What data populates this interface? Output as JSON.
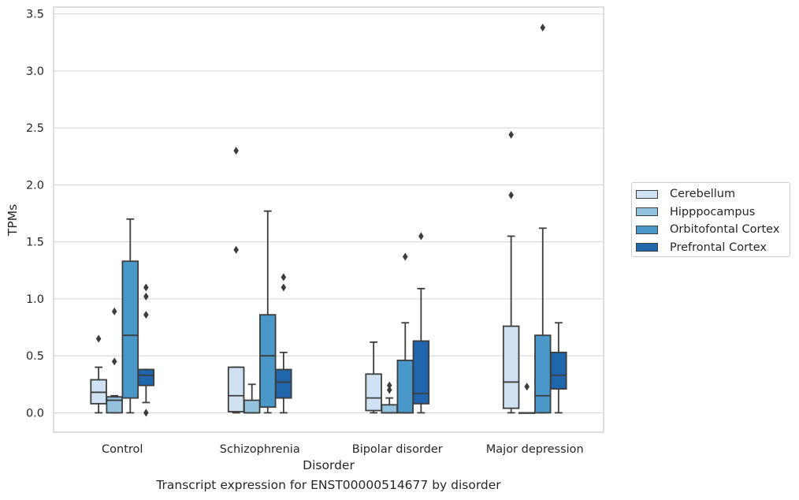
{
  "chart_data": {
    "type": "box",
    "xlabel": "Disorder",
    "ylabel": "TPMs",
    "caption": "Transcript expression for ENST00000514677 by disorder",
    "ylim": [
      -0.17,
      3.56
    ],
    "yticks": [
      "0.0",
      "0.5",
      "1.0",
      "1.5",
      "2.0",
      "2.5",
      "3.0",
      "3.5"
    ],
    "grid": true,
    "legend_position": "right",
    "categories": [
      "Control",
      "Schizophrenia",
      "Bipolar disorder",
      "Major depression"
    ],
    "series": [
      {
        "name": "Cerebellum",
        "color": "#cfe1f2",
        "boxes": [
          {
            "q1": 0.08,
            "median": 0.18,
            "q3": 0.29,
            "whisker_low": 0.0,
            "whisker_high": 0.4,
            "outliers": [
              0.65
            ]
          },
          {
            "q1": 0.01,
            "median": 0.15,
            "q3": 0.4,
            "whisker_low": 0.0,
            "whisker_high": 0.4,
            "outliers": [
              1.43,
              2.3
            ]
          },
          {
            "q1": 0.02,
            "median": 0.13,
            "q3": 0.34,
            "whisker_low": 0.0,
            "whisker_high": 0.62,
            "outliers": []
          },
          {
            "q1": 0.04,
            "median": 0.27,
            "q3": 0.76,
            "whisker_low": 0.0,
            "whisker_high": 1.55,
            "outliers": [
              1.91,
              2.44
            ]
          }
        ]
      },
      {
        "name": "Hipppocampus",
        "color": "#93c3df",
        "boxes": [
          {
            "q1": 0.0,
            "median": 0.11,
            "q3": 0.14,
            "whisker_low": 0.0,
            "whisker_high": 0.15,
            "outliers": [
              0.45,
              0.89
            ]
          },
          {
            "q1": 0.0,
            "median": 0.0,
            "q3": 0.11,
            "whisker_low": 0.0,
            "whisker_high": 0.25,
            "outliers": []
          },
          {
            "q1": 0.0,
            "median": 0.0,
            "q3": 0.07,
            "whisker_low": 0.0,
            "whisker_high": 0.13,
            "outliers": [
              0.2,
              0.24
            ]
          },
          {
            "q1": 0.0,
            "median": 0.0,
            "q3": 0.0,
            "whisker_low": 0.0,
            "whisker_high": 0.0,
            "outliers": [
              0.23
            ]
          }
        ]
      },
      {
        "name": "Orbitofontal Cortex",
        "color": "#4a98c9",
        "boxes": [
          {
            "q1": 0.13,
            "median": 0.68,
            "q3": 1.33,
            "whisker_low": 0.0,
            "whisker_high": 1.7,
            "outliers": []
          },
          {
            "q1": 0.05,
            "median": 0.5,
            "q3": 0.86,
            "whisker_low": 0.0,
            "whisker_high": 1.77,
            "outliers": []
          },
          {
            "q1": 0.0,
            "median": 0.0,
            "q3": 0.46,
            "whisker_low": 0.0,
            "whisker_high": 0.79,
            "outliers": [
              1.37
            ]
          },
          {
            "q1": 0.0,
            "median": 0.15,
            "q3": 0.68,
            "whisker_low": 0.0,
            "whisker_high": 1.62,
            "outliers": [
              3.38
            ]
          }
        ]
      },
      {
        "name": "Prefrontal Cortex",
        "color": "#2066ac",
        "boxes": [
          {
            "q1": 0.24,
            "median": 0.33,
            "q3": 0.38,
            "whisker_low": 0.09,
            "whisker_high": 0.38,
            "outliers": [
              0.0,
              0.86,
              1.02,
              1.1
            ]
          },
          {
            "q1": 0.13,
            "median": 0.27,
            "q3": 0.38,
            "whisker_low": 0.0,
            "whisker_high": 0.53,
            "outliers": [
              1.1,
              1.19
            ]
          },
          {
            "q1": 0.08,
            "median": 0.17,
            "q3": 0.63,
            "whisker_low": 0.0,
            "whisker_high": 1.09,
            "outliers": [
              1.55
            ]
          },
          {
            "q1": 0.21,
            "median": 0.33,
            "q3": 0.53,
            "whisker_low": 0.0,
            "whisker_high": 0.79,
            "outliers": []
          }
        ]
      }
    ]
  }
}
